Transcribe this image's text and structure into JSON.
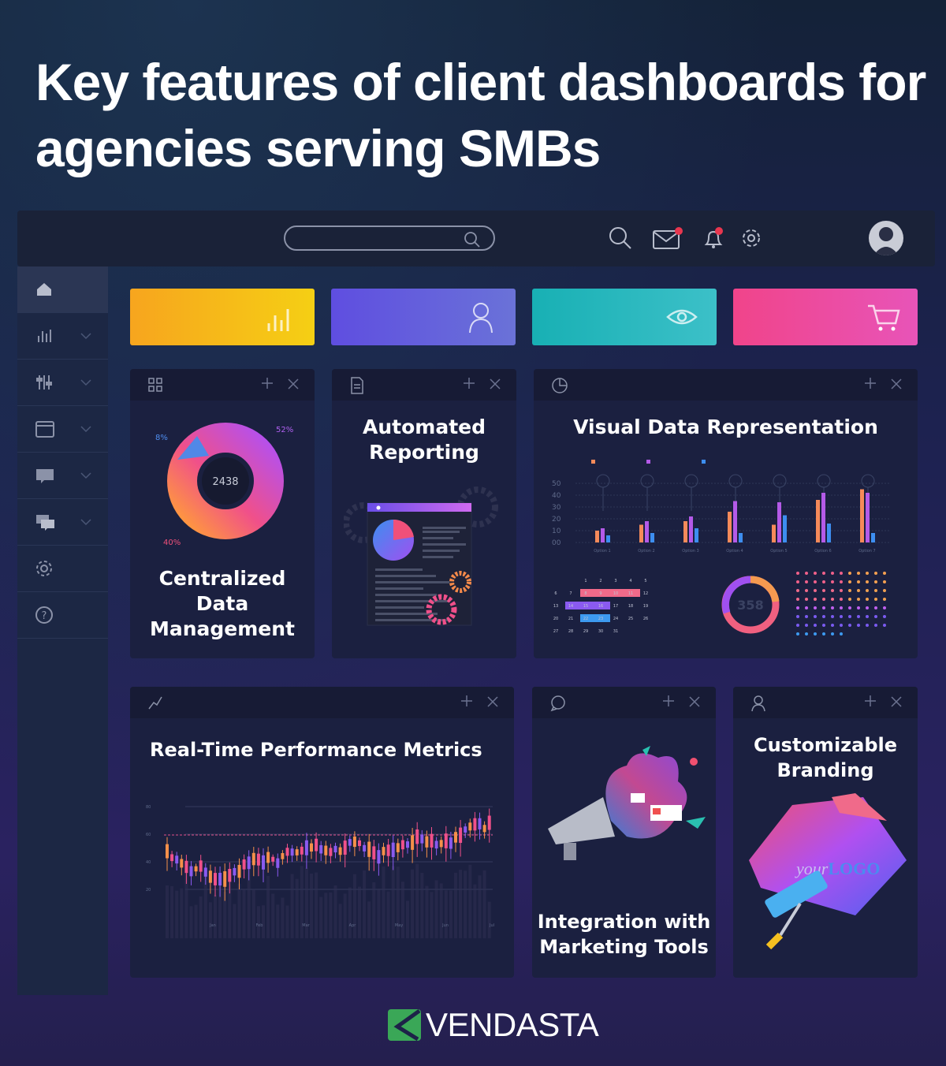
{
  "title": "Key features of client dashboards for agencies serving SMBs",
  "topbar": {
    "icons": [
      "search-icon",
      "mail-icon",
      "bell-icon",
      "gear-icon"
    ],
    "notification_color": "#e8364f"
  },
  "sidebar": {
    "items": [
      {
        "icon": "home-icon",
        "active": true
      },
      {
        "icon": "bar-chart-icon"
      },
      {
        "icon": "sliders-icon"
      },
      {
        "icon": "window-icon"
      },
      {
        "icon": "chat-icon"
      },
      {
        "icon": "chats-icon"
      },
      {
        "icon": "gear-icon"
      },
      {
        "icon": "help-icon"
      }
    ]
  },
  "tiles": [
    {
      "icon": "bar-chart-icon",
      "colors": [
        "#f7a51e",
        "#f5cf14"
      ]
    },
    {
      "icon": "user-icon",
      "colors": [
        "#5f4ee0",
        "#6a72d8"
      ]
    },
    {
      "icon": "eye-icon",
      "colors": [
        "#18b0b4",
        "#3cc0c8"
      ]
    },
    {
      "icon": "cart-icon",
      "colors": [
        "#f0448a",
        "#e854b8"
      ]
    }
  ],
  "cards": {
    "centralized": {
      "title": "Centralized Data Management",
      "center_value": "2438",
      "labels": [
        "8%",
        "52%",
        "40%"
      ]
    },
    "automated": {
      "title": "Automated Reporting"
    },
    "visual": {
      "title": "Visual Data Representation",
      "donut_value": "358",
      "bar_chart": {
        "type": "bar",
        "categories": [
          "Option 1",
          "Option 2",
          "Option 3",
          "Option 4",
          "Option 5",
          "Option 6",
          "Option 7"
        ],
        "yticks": [
          "00",
          "10",
          "20",
          "30",
          "40",
          "50"
        ],
        "ylim": [
          0,
          50
        ],
        "series": [
          {
            "values": [
              10,
              15,
              18,
              26,
              15,
              36,
              45
            ],
            "color": "#f58a5a"
          },
          {
            "values": [
              12,
              18,
              22,
              35,
              34,
              42,
              42
            ],
            "color": "#b45ae8"
          },
          {
            "values": [
              6,
              8,
              12,
              8,
              23,
              16,
              8
            ],
            "color": "#3d8ef0"
          }
        ]
      },
      "calendar": {
        "weeks": [
          [
            "",
            "",
            "1",
            "2",
            "3",
            "4",
            "5"
          ],
          [
            "6",
            "7",
            "8",
            "9",
            "10",
            "11",
            "12"
          ],
          [
            "13",
            "14",
            "15",
            "16",
            "17",
            "18",
            "19"
          ],
          [
            "20",
            "21",
            "22",
            "23",
            "24",
            "25",
            "26"
          ],
          [
            "27",
            "28",
            "29",
            "30",
            "31",
            "",
            ""
          ]
        ]
      }
    },
    "realtime": {
      "title": "Real-Time Performance Metrics",
      "yticks": [
        "80",
        "60",
        "40",
        "20"
      ],
      "months": [
        "Jan",
        "Feb",
        "Mar",
        "Apr",
        "May",
        "Jun",
        "Jul"
      ]
    },
    "integration": {
      "title": "Integration with Marketing Tools"
    },
    "branding": {
      "title": "Customizable Branding",
      "logo_text": "yourLOGO"
    }
  },
  "brand": {
    "name": "VENDASTA",
    "color": "#3aa757"
  }
}
